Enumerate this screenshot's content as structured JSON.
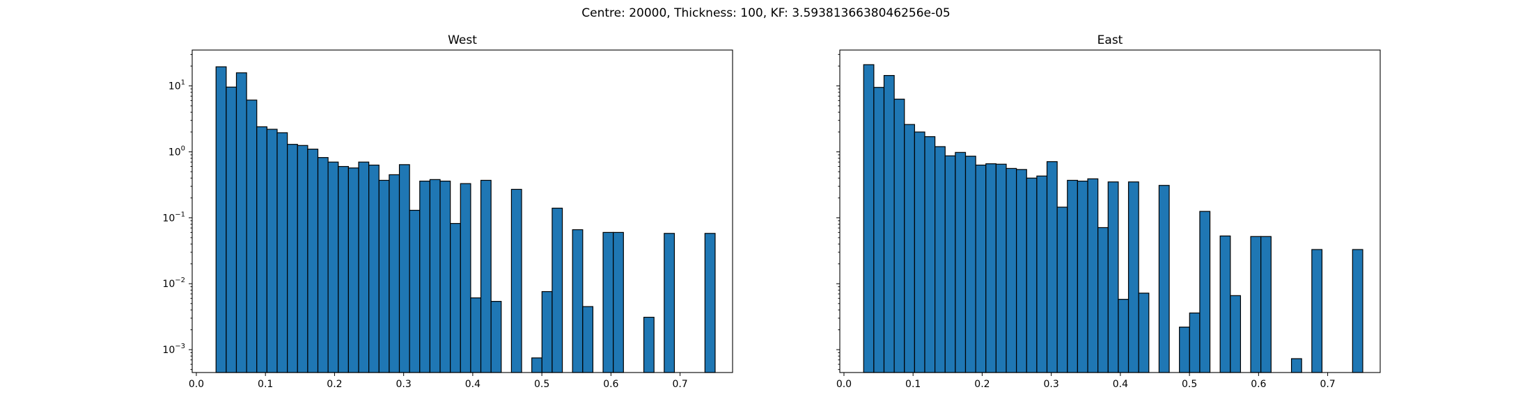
{
  "figure": {
    "suptitle": "Centre: 20000, Thickness: 100, KF: 3.5938136638046256e-05"
  },
  "chart_data": [
    {
      "type": "bar",
      "title": "West",
      "yscale": "log",
      "xlim": [
        -0.006,
        0.776
      ],
      "ylim": [
        0.00045,
        35
      ],
      "xticks": [
        0.0,
        0.1,
        0.2,
        0.3,
        0.4,
        0.5,
        0.6,
        0.7
      ],
      "xtick_labels": [
        "0.0",
        "0.1",
        "0.2",
        "0.3",
        "0.4",
        "0.5",
        "0.6",
        "0.7"
      ],
      "ytick_labels": [
        {
          "base": "10",
          "exp": "1",
          "value": 10
        },
        {
          "base": "10",
          "exp": "0",
          "value": 1
        },
        {
          "base": "10",
          "exp": "−1",
          "value": 0.1
        },
        {
          "base": "10",
          "exp": "−2",
          "value": 0.01
        },
        {
          "base": "10",
          "exp": "−3",
          "value": 0.001
        }
      ],
      "show_ytick_labels": true,
      "bin_edges_start": 0.0285,
      "bin_width": 0.01474,
      "values": [
        19.5,
        9.6,
        15.8,
        6.1,
        2.4,
        2.2,
        1.95,
        1.3,
        1.25,
        1.1,
        0.82,
        0.7,
        0.6,
        0.57,
        0.7,
        0.63,
        0.37,
        0.45,
        0.64,
        0.13,
        0.36,
        0.38,
        0.36,
        0.082,
        0.33,
        0.0061,
        0.37,
        0.0054,
        0,
        0.27,
        0,
        0.00075,
        0.0076,
        0.14,
        0,
        0.066,
        0.0045,
        0,
        0.06,
        0.06,
        0,
        0,
        0.0031,
        0,
        0.058,
        0,
        0,
        0,
        0.058
      ]
    },
    {
      "type": "bar",
      "title": "East",
      "yscale": "log",
      "xlim": [
        -0.006,
        0.776
      ],
      "ylim": [
        0.00045,
        35
      ],
      "xticks": [
        0.0,
        0.1,
        0.2,
        0.3,
        0.4,
        0.5,
        0.6,
        0.7
      ],
      "xtick_labels": [
        "0.0",
        "0.1",
        "0.2",
        "0.3",
        "0.4",
        "0.5",
        "0.6",
        "0.7"
      ],
      "ytick_labels": [],
      "show_ytick_labels": false,
      "bin_edges_start": 0.0285,
      "bin_width": 0.01474,
      "values": [
        21,
        9.5,
        14.4,
        6.3,
        2.6,
        2.0,
        1.7,
        1.2,
        0.87,
        0.98,
        0.86,
        0.63,
        0.66,
        0.65,
        0.56,
        0.54,
        0.4,
        0.43,
        0.71,
        0.145,
        0.37,
        0.36,
        0.39,
        0.071,
        0.35,
        0.0058,
        0.35,
        0.0072,
        0,
        0.31,
        0,
        0.0022,
        0.0036,
        0.125,
        0,
        0.053,
        0.0066,
        0,
        0.052,
        0.052,
        0,
        0,
        0.00073,
        0,
        0.033,
        0,
        0,
        0,
        0.033
      ]
    }
  ]
}
